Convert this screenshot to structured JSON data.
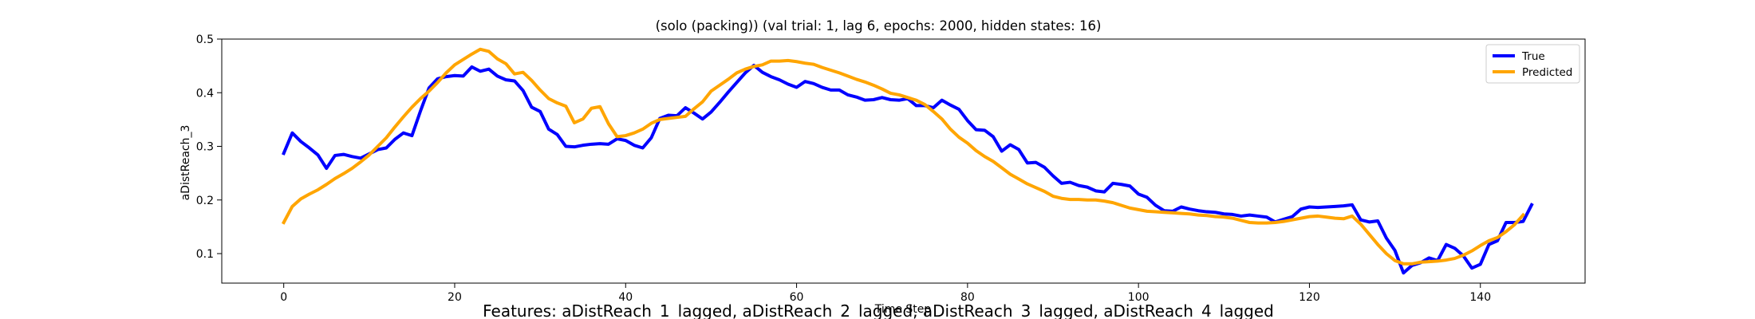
{
  "chart_data": {
    "type": "line",
    "title": "(solo (packing)) (val trial: 1, lag 6, epochs: 2000, hidden states: 16)",
    "xlabel": "Time Step",
    "ylabel": "aDistReach_3",
    "footer": "Features: aDistReach_1_lagged, aDistReach_2_lagged, aDistReach_3_lagged, aDistReach_4_lagged",
    "xlim": [
      -7.25,
      152.25
    ],
    "ylim": [
      0.045,
      0.5
    ],
    "xticks": [
      0,
      20,
      40,
      60,
      80,
      100,
      120,
      140
    ],
    "yticks": [
      0.1,
      0.2,
      0.3,
      0.4,
      0.5
    ],
    "xtick_labels": [
      "0",
      "20",
      "40",
      "60",
      "80",
      "100",
      "120",
      "140"
    ],
    "ytick_labels": [
      "0.1",
      "0.2",
      "0.3",
      "0.4",
      "0.5"
    ],
    "legend": {
      "position": "top-right",
      "entries": [
        "True",
        "Predicted"
      ]
    },
    "grid": false,
    "series": [
      {
        "name": "True",
        "color": "#0000ff",
        "values": [
          0.287,
          0.325,
          0.309,
          0.297,
          0.284,
          0.259,
          0.283,
          0.285,
          0.281,
          0.278,
          0.286,
          0.294,
          0.297,
          0.313,
          0.325,
          0.32,
          0.366,
          0.409,
          0.426,
          0.43,
          0.432,
          0.431,
          0.448,
          0.44,
          0.444,
          0.431,
          0.424,
          0.422,
          0.404,
          0.373,
          0.365,
          0.332,
          0.322,
          0.3,
          0.299,
          0.302,
          0.304,
          0.305,
          0.304,
          0.314,
          0.311,
          0.302,
          0.297,
          0.316,
          0.352,
          0.358,
          0.357,
          0.372,
          0.362,
          0.351,
          0.364,
          0.382,
          0.401,
          0.419,
          0.437,
          0.451,
          0.438,
          0.43,
          0.424,
          0.416,
          0.41,
          0.421,
          0.417,
          0.41,
          0.405,
          0.405,
          0.396,
          0.392,
          0.386,
          0.387,
          0.391,
          0.387,
          0.386,
          0.389,
          0.376,
          0.376,
          0.372,
          0.386,
          0.377,
          0.369,
          0.348,
          0.331,
          0.33,
          0.318,
          0.291,
          0.303,
          0.294,
          0.269,
          0.27,
          0.261,
          0.245,
          0.231,
          0.233,
          0.227,
          0.224,
          0.217,
          0.215,
          0.231,
          0.229,
          0.226,
          0.211,
          0.205,
          0.19,
          0.18,
          0.179,
          0.187,
          0.183,
          0.18,
          0.178,
          0.177,
          0.174,
          0.173,
          0.17,
          0.172,
          0.17,
          0.168,
          0.159,
          0.164,
          0.169,
          0.183,
          0.187,
          0.186,
          0.187,
          0.188,
          0.189,
          0.191,
          0.163,
          0.159,
          0.161,
          0.129,
          0.106,
          0.064,
          0.078,
          0.083,
          0.092,
          0.087,
          0.117,
          0.11,
          0.096,
          0.073,
          0.08,
          0.117,
          0.124,
          0.158,
          0.158,
          0.16,
          0.191
        ]
      },
      {
        "name": "Predicted",
        "color": "#ffa500",
        "values": [
          0.158,
          0.188,
          0.202,
          0.211,
          0.219,
          0.229,
          0.24,
          0.249,
          0.259,
          0.271,
          0.284,
          0.3,
          0.316,
          0.336,
          0.355,
          0.373,
          0.389,
          0.403,
          0.419,
          0.437,
          0.452,
          0.462,
          0.472,
          0.481,
          0.477,
          0.463,
          0.454,
          0.435,
          0.438,
          0.423,
          0.405,
          0.389,
          0.381,
          0.375,
          0.344,
          0.351,
          0.371,
          0.374,
          0.342,
          0.318,
          0.32,
          0.325,
          0.332,
          0.343,
          0.35,
          0.352,
          0.354,
          0.356,
          0.37,
          0.383,
          0.403,
          0.414,
          0.425,
          0.437,
          0.444,
          0.449,
          0.452,
          0.459,
          0.459,
          0.46,
          0.458,
          0.455,
          0.453,
          0.447,
          0.442,
          0.437,
          0.431,
          0.425,
          0.42,
          0.414,
          0.407,
          0.399,
          0.396,
          0.391,
          0.386,
          0.378,
          0.365,
          0.351,
          0.332,
          0.317,
          0.306,
          0.292,
          0.281,
          0.272,
          0.26,
          0.248,
          0.239,
          0.23,
          0.223,
          0.216,
          0.207,
          0.203,
          0.201,
          0.201,
          0.2,
          0.2,
          0.198,
          0.195,
          0.19,
          0.185,
          0.182,
          0.179,
          0.178,
          0.177,
          0.176,
          0.175,
          0.174,
          0.172,
          0.171,
          0.169,
          0.168,
          0.166,
          0.162,
          0.158,
          0.157,
          0.157,
          0.158,
          0.16,
          0.163,
          0.166,
          0.169,
          0.17,
          0.168,
          0.166,
          0.165,
          0.17,
          0.155,
          0.136,
          0.117,
          0.1,
          0.087,
          0.081,
          0.081,
          0.084,
          0.085,
          0.086,
          0.088,
          0.091,
          0.097,
          0.105,
          0.115,
          0.124,
          0.13,
          0.141,
          0.154,
          0.172
        ]
      }
    ]
  }
}
